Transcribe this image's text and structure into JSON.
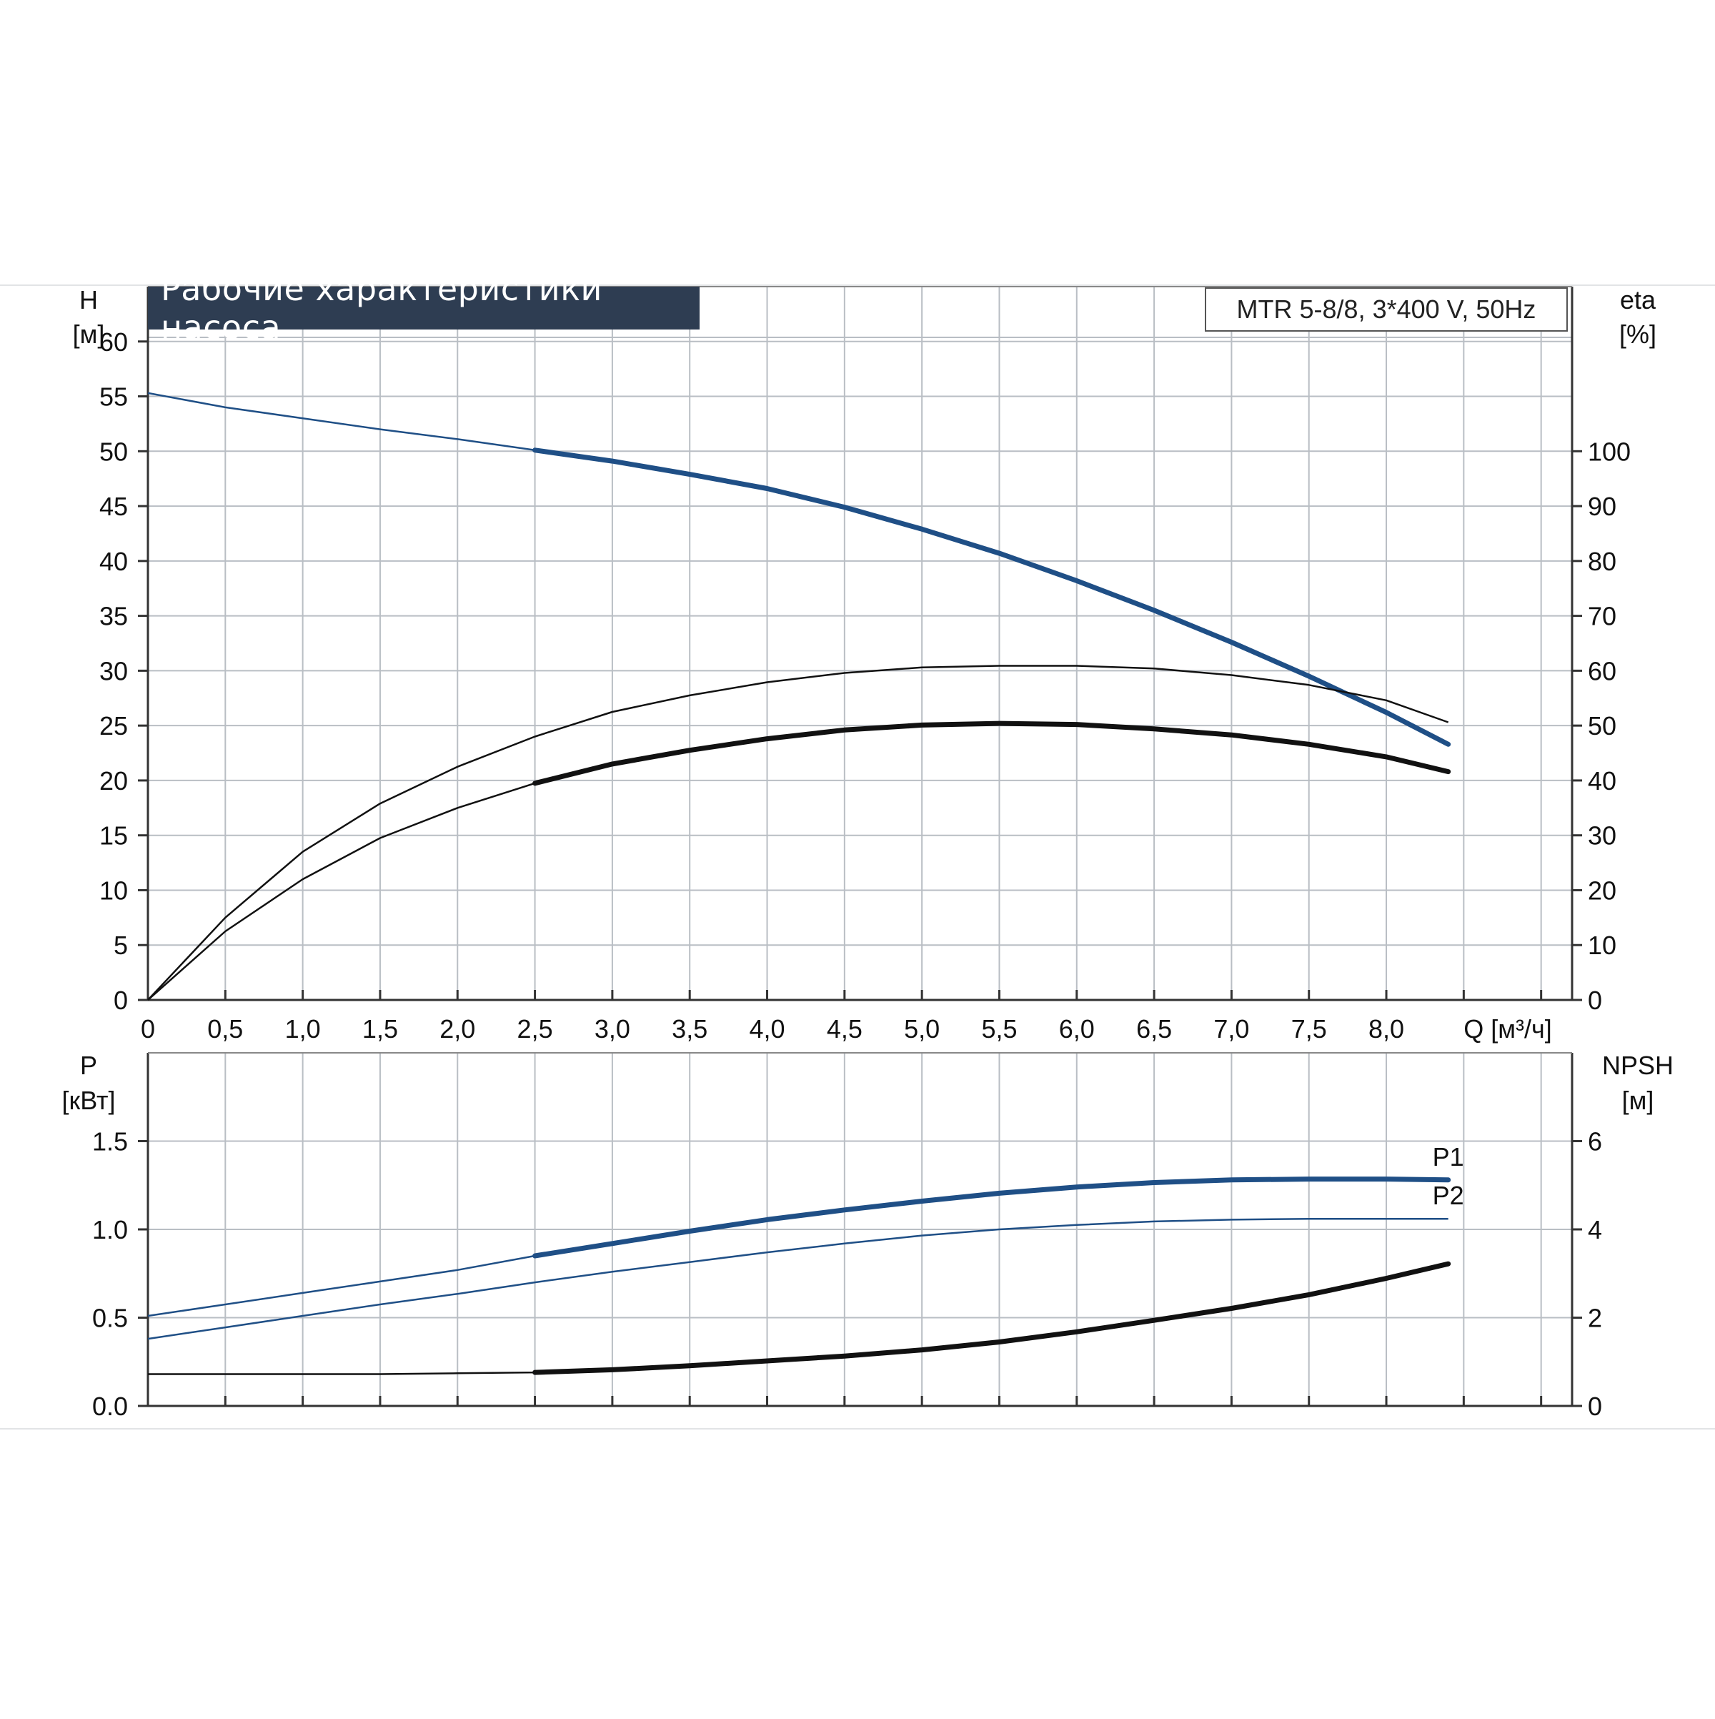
{
  "header": {
    "title": "Рабочие характеристики насоса",
    "model": "MTR 5-8/8, 3*400 V, 50Hz"
  },
  "colors": {
    "blue": "#1f4f86",
    "black": "#111111",
    "grid": "#b9bec4",
    "title_bg": "#2e3d52"
  },
  "x_axis": {
    "label": "Q [м³/ч]",
    "ticks": [
      0,
      0.5,
      1.0,
      1.5,
      2.0,
      2.5,
      3.0,
      3.5,
      4.0,
      4.5,
      5.0,
      5.5,
      6.0,
      6.5,
      7.0,
      7.5,
      8.0
    ],
    "tick_labels": [
      "0",
      "0,5",
      "1,0",
      "1,5",
      "2,0",
      "2,5",
      "3,0",
      "3,5",
      "4,0",
      "4,5",
      "5,0",
      "5,5",
      "6,0",
      "6,5",
      "7,0",
      "7,5",
      "8,0"
    ],
    "range": [
      0,
      9.2
    ]
  },
  "chart_data": [
    {
      "type": "line",
      "panel": "top",
      "left_axis": {
        "label_line1": "H",
        "label_line2": "[м]",
        "ticks": [
          0,
          5,
          10,
          15,
          20,
          25,
          30,
          35,
          40,
          45,
          50,
          55,
          60
        ],
        "range": [
          0,
          65
        ]
      },
      "right_axis": {
        "label_line1": "eta",
        "label_line2": "[%]",
        "ticks": [
          0,
          10,
          20,
          30,
          40,
          50,
          60,
          70,
          80,
          90,
          100
        ],
        "range": [
          0,
          130
        ]
      },
      "series": [
        {
          "axis": "left",
          "color": "blue",
          "bold_from": 2.5,
          "x": [
            0,
            0.5,
            1.0,
            1.5,
            2.0,
            2.5,
            3.0,
            3.5,
            4.0,
            4.5,
            5.0,
            5.5,
            6.0,
            6.5,
            7.0,
            7.5,
            8.0,
            8.4
          ],
          "y": [
            55.3,
            54.0,
            53.0,
            52.0,
            51.1,
            50.1,
            49.1,
            47.9,
            46.6,
            44.9,
            42.9,
            40.7,
            38.2,
            35.5,
            32.6,
            29.5,
            26.2,
            23.3
          ]
        },
        {
          "axis": "right",
          "color": "black",
          "bold_from": 2.5,
          "x": [
            0,
            0.5,
            1.0,
            1.5,
            2.0,
            2.5,
            3.0,
            3.5,
            4.0,
            4.5,
            5.0,
            5.5,
            6.0,
            6.5,
            7.0,
            7.5,
            8.0,
            8.4
          ],
          "y": [
            0,
            12.5,
            22,
            29.5,
            35,
            39.5,
            43,
            45.5,
            47.6,
            49.2,
            50.1,
            50.4,
            50.2,
            49.4,
            48.3,
            46.6,
            44.3,
            41.6
          ]
        },
        {
          "axis": "right",
          "color": "black",
          "bold_from": 9.9,
          "x": [
            0,
            0.5,
            1.0,
            1.5,
            2.0,
            2.5,
            3.0,
            3.5,
            4.0,
            4.5,
            5.0,
            5.5,
            6.0,
            6.5,
            7.0,
            7.5,
            8.0,
            8.4
          ],
          "y": [
            0,
            15,
            27,
            35.8,
            42.5,
            48,
            52.5,
            55.5,
            57.9,
            59.6,
            60.6,
            60.9,
            60.9,
            60.4,
            59.2,
            57.4,
            54.6,
            50.6
          ]
        }
      ]
    },
    {
      "type": "line",
      "panel": "bottom",
      "left_axis": {
        "label_line1": "P",
        "label_line2": "[кВт]",
        "ticks": [
          0.0,
          0.5,
          1.0,
          1.5
        ],
        "tick_labels": [
          "0.0",
          "0.5",
          "1.0",
          "1.5"
        ],
        "range": [
          0,
          2.0
        ]
      },
      "right_axis": {
        "label_line1": "NPSH",
        "label_line2": "[м]",
        "ticks": [
          0,
          2,
          4,
          6
        ],
        "range": [
          0,
          8.0
        ]
      },
      "series": [
        {
          "name": "P1",
          "axis": "left",
          "color": "blue",
          "bold_from": 2.5,
          "x": [
            0,
            0.5,
            1.0,
            1.5,
            2.0,
            2.5,
            3.0,
            3.5,
            4.0,
            4.5,
            5.0,
            5.5,
            6.0,
            6.5,
            7.0,
            7.5,
            8.0,
            8.4
          ],
          "y": [
            0.51,
            0.575,
            0.64,
            0.705,
            0.77,
            0.85,
            0.92,
            0.99,
            1.055,
            1.11,
            1.16,
            1.205,
            1.24,
            1.265,
            1.28,
            1.285,
            1.285,
            1.28
          ]
        },
        {
          "name": "P2",
          "axis": "left",
          "color": "blue",
          "bold_from": 9.9,
          "x": [
            0,
            0.5,
            1.0,
            1.5,
            2.0,
            2.5,
            3.0,
            3.5,
            4.0,
            4.5,
            5.0,
            5.5,
            6.0,
            6.5,
            7.0,
            7.5,
            8.0,
            8.4
          ],
          "y": [
            0.38,
            0.445,
            0.51,
            0.575,
            0.635,
            0.7,
            0.76,
            0.815,
            0.87,
            0.92,
            0.965,
            1.0,
            1.025,
            1.045,
            1.055,
            1.06,
            1.06,
            1.06
          ]
        },
        {
          "axis": "right",
          "color": "black",
          "bold_from": 2.5,
          "x": [
            0,
            0.5,
            1.0,
            1.5,
            2.0,
            2.5,
            3.0,
            3.5,
            4.0,
            4.5,
            5.0,
            5.5,
            6.0,
            6.5,
            7.0,
            7.5,
            8.0,
            8.4
          ],
          "y": [
            0.72,
            0.72,
            0.72,
            0.72,
            0.74,
            0.76,
            0.82,
            0.91,
            1.02,
            1.13,
            1.27,
            1.45,
            1.68,
            1.94,
            2.21,
            2.52,
            2.89,
            3.22
          ]
        }
      ]
    }
  ]
}
